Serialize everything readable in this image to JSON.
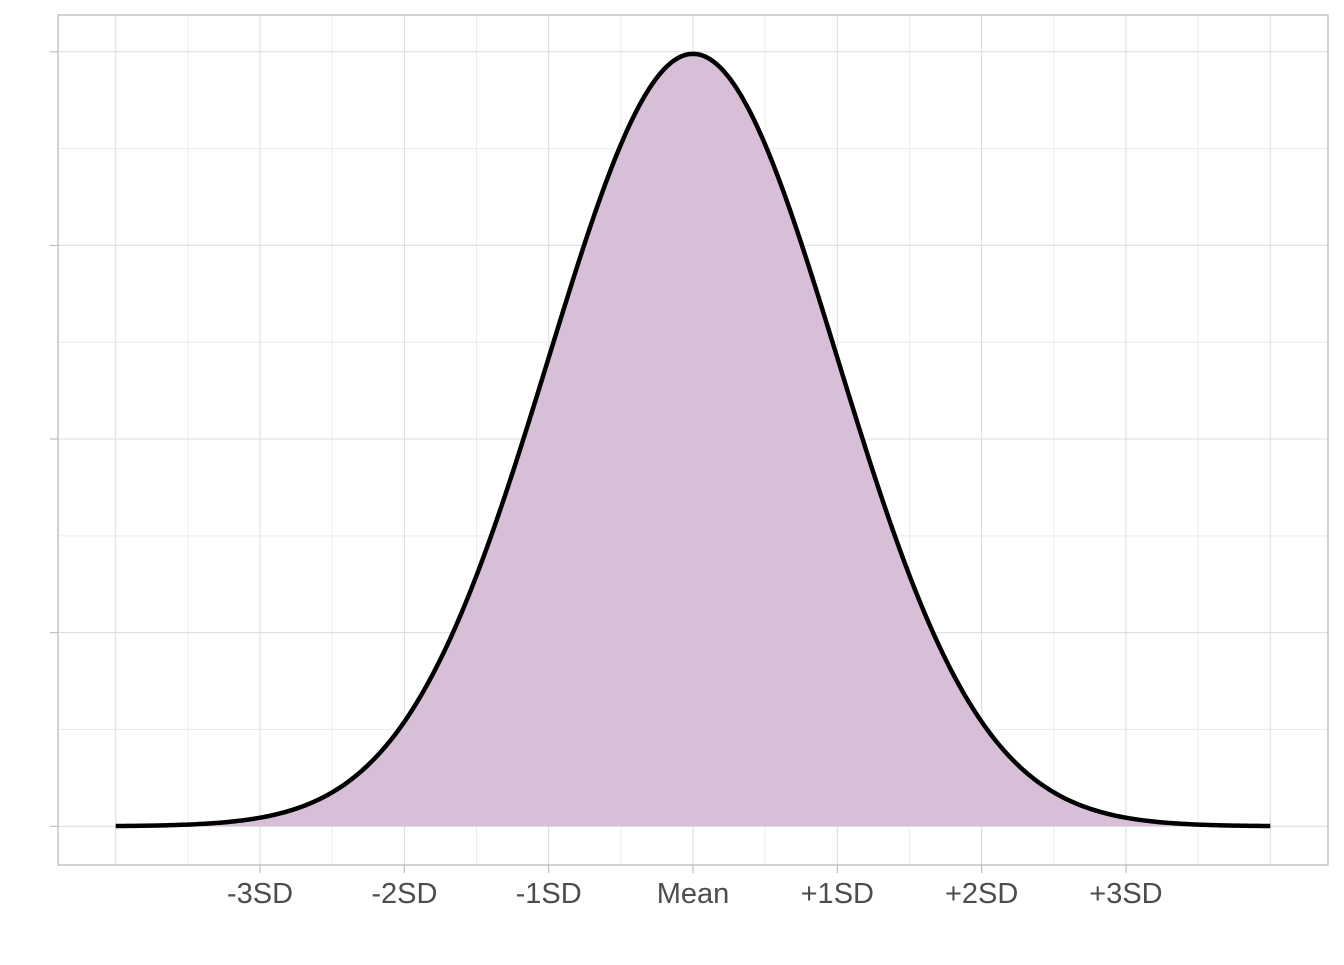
{
  "colors": {
    "background": "#ffffff",
    "panel_border": "#b3b3b3",
    "grid_major": "#dcdcdc",
    "grid_minor": "#ececec",
    "fill": "#d7c0d7",
    "curve": "#000000",
    "tick_label": "#4d4d4d"
  },
  "chart_data": {
    "type": "area",
    "distribution": "normal",
    "mean": 0,
    "sd": 1,
    "x_range": [
      -4,
      4
    ],
    "xlim": [
      -4.4,
      4.4
    ],
    "ylim": [
      -0.02,
      0.419
    ],
    "y_peak": 0.3989,
    "xticks": [
      {
        "x": -3,
        "label": "-3SD"
      },
      {
        "x": -2,
        "label": "-2SD"
      },
      {
        "x": -1,
        "label": "-1SD"
      },
      {
        "x": 0,
        "label": "Mean"
      },
      {
        "x": 1,
        "label": "+1SD"
      },
      {
        "x": 2,
        "label": "+2SD"
      },
      {
        "x": 3,
        "label": "+3SD"
      }
    ],
    "x_major_grid": [
      -4,
      -3,
      -2,
      -1,
      0,
      1,
      2,
      3,
      4
    ],
    "x_minor_grid": [
      -3.5,
      -2.5,
      -1.5,
      -0.5,
      0.5,
      1.5,
      2.5,
      3.5
    ],
    "y_major_grid": [
      0.0,
      0.1,
      0.2,
      0.3,
      0.4
    ],
    "y_minor_grid": [
      0.05,
      0.15,
      0.25,
      0.35
    ],
    "title": "",
    "xlabel": "",
    "ylabel": "",
    "grid": true,
    "legend": "none"
  }
}
